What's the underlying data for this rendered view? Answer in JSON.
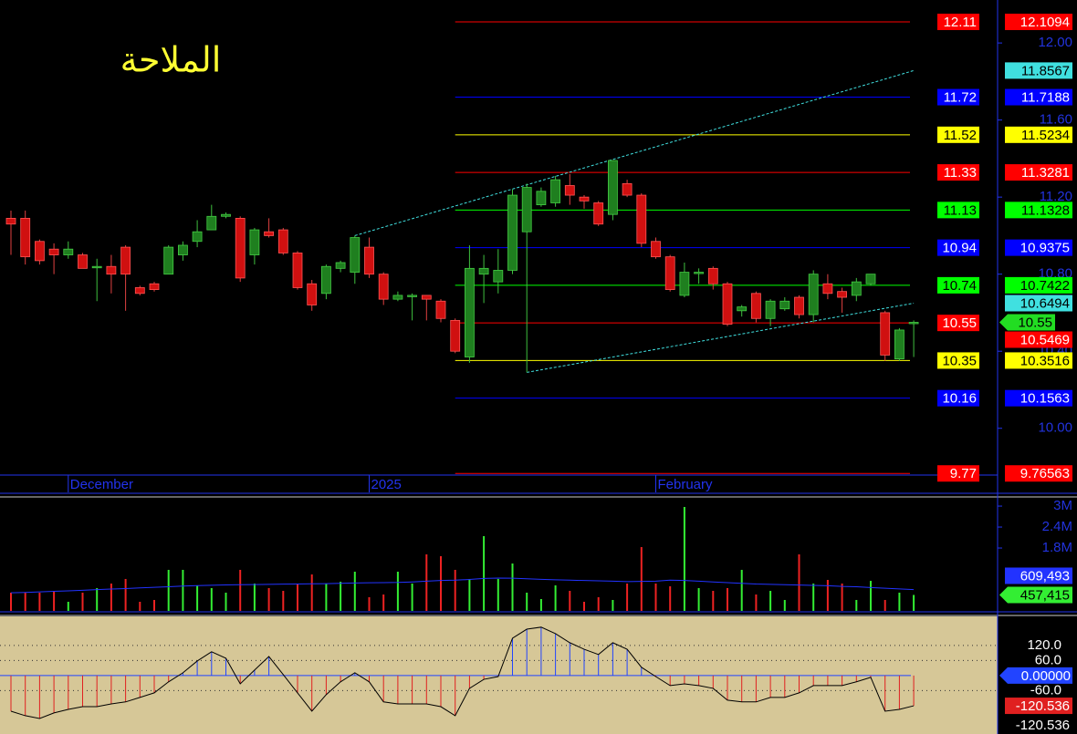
{
  "chart_data": [
    {
      "type": "candlestick",
      "title": "الملاحة",
      "categories": [
        null,
        null,
        null,
        null,
        "December",
        null,
        null,
        null,
        null,
        null,
        null,
        null,
        null,
        null,
        null,
        null,
        null,
        null,
        null,
        null,
        null,
        null,
        null,
        null,
        null,
        "2025",
        null,
        null,
        null,
        null,
        null,
        null,
        null,
        null,
        null,
        null,
        null,
        null,
        null,
        null,
        null,
        null,
        null,
        null,
        null,
        "February",
        null,
        null,
        null,
        null,
        null,
        null,
        null,
        null,
        null,
        null,
        null,
        null,
        null,
        null,
        null,
        null,
        null,
        null
      ],
      "open": [
        11.09,
        11.09,
        10.97,
        10.93,
        10.9,
        10.9,
        10.84,
        10.84,
        10.94,
        10.73,
        10.75,
        10.8,
        10.9,
        10.97,
        11.03,
        11.1,
        11.09,
        10.9,
        11.02,
        11.03,
        10.91,
        10.75,
        10.7,
        10.83,
        10.81,
        10.94,
        10.8,
        10.67,
        10.69,
        10.69,
        10.66,
        10.56,
        10.37,
        10.8,
        10.76,
        10.82,
        11.02,
        11.16,
        11.17,
        11.26,
        11.2,
        11.17,
        11.11,
        11.27,
        11.21,
        10.97,
        10.89,
        10.69,
        10.81,
        10.83,
        10.75,
        10.61,
        10.7,
        10.57,
        10.62,
        10.68,
        10.59,
        10.75,
        10.71,
        10.69,
        10.75,
        10.6,
        10.36,
        10.55
      ],
      "high": [
        11.13,
        11.13,
        10.98,
        10.96,
        10.97,
        10.91,
        10.88,
        10.9,
        10.95,
        10.74,
        10.76,
        10.95,
        10.97,
        11.08,
        11.16,
        11.12,
        11.1,
        11.04,
        11.09,
        11.04,
        10.92,
        10.77,
        10.85,
        10.87,
        11.0,
        10.99,
        10.81,
        10.71,
        10.7,
        10.69,
        10.67,
        10.57,
        10.95,
        10.9,
        10.93,
        11.24,
        11.27,
        11.25,
        11.31,
        11.32,
        11.21,
        11.18,
        11.39,
        11.29,
        11.22,
        10.99,
        10.9,
        10.86,
        10.83,
        10.84,
        10.76,
        10.64,
        10.71,
        10.67,
        10.68,
        10.69,
        10.82,
        10.8,
        10.73,
        10.78,
        10.8,
        10.61,
        10.52,
        10.56
      ],
      "low": [
        10.9,
        10.85,
        10.85,
        10.8,
        10.88,
        10.83,
        10.66,
        10.7,
        10.61,
        10.69,
        10.71,
        10.8,
        10.87,
        10.94,
        11.03,
        11.09,
        10.76,
        10.85,
        10.99,
        10.9,
        10.72,
        10.61,
        10.67,
        10.81,
        10.75,
        10.78,
        10.64,
        10.66,
        10.56,
        10.56,
        10.55,
        10.39,
        10.34,
        10.65,
        10.7,
        10.8,
        10.29,
        11.15,
        11.15,
        11.16,
        11.14,
        11.05,
        11.08,
        11.2,
        10.94,
        10.88,
        10.71,
        10.68,
        10.75,
        10.72,
        10.53,
        10.58,
        10.55,
        10.53,
        10.61,
        10.57,
        10.55,
        10.67,
        10.6,
        10.66,
        10.74,
        10.35,
        10.35,
        10.37
      ],
      "close": [
        11.06,
        10.89,
        10.87,
        10.9,
        10.93,
        10.83,
        10.84,
        10.8,
        10.8,
        10.7,
        10.72,
        10.94,
        10.95,
        11.02,
        11.1,
        11.11,
        10.78,
        11.03,
        11.0,
        10.91,
        10.73,
        10.64,
        10.84,
        10.86,
        10.99,
        10.8,
        10.67,
        10.69,
        10.69,
        10.67,
        10.57,
        10.4,
        10.83,
        10.83,
        10.82,
        11.21,
        11.25,
        11.23,
        11.29,
        11.21,
        11.18,
        11.06,
        11.39,
        11.21,
        10.96,
        10.89,
        10.72,
        10.81,
        10.81,
        10.75,
        10.54,
        10.63,
        10.57,
        10.66,
        10.66,
        10.59,
        10.8,
        10.7,
        10.68,
        10.76,
        10.8,
        10.38,
        10.51,
        10.55
      ],
      "up_color": "#1f7f1f",
      "down_color": "#d01010",
      "ylim": [
        9.762,
        12.223
      ],
      "yticks": [
        {
          "value": 12,
          "label": "12.00"
        },
        {
          "value": 11.6,
          "label": "11.60"
        },
        {
          "value": 11.2,
          "label": "11.20"
        },
        {
          "value": 10.8,
          "label": "10.80"
        },
        {
          "value": 10.4,
          "label": "10.40"
        },
        {
          "value": 10,
          "label": "10.00"
        }
      ],
      "levels_from": 31,
      "levels": [
        {
          "value": 12.1094,
          "label": "12.11",
          "color": "#ff0000"
        },
        {
          "value": 11.7188,
          "label": "11.72",
          "color": "#0000ff"
        },
        {
          "value": 11.5234,
          "label": "11.52",
          "color": "#ffff00"
        },
        {
          "value": 11.3281,
          "label": "11.33",
          "color": "#ff0000"
        },
        {
          "value": 11.1328,
          "label": "11.13",
          "color": "#00ff00"
        },
        {
          "value": 10.9375,
          "label": "10.94",
          "color": "#0000ff"
        },
        {
          "value": 10.7422,
          "label": "10.74",
          "color": "#00ff00"
        },
        {
          "value": 10.5469,
          "label": "10.55",
          "color": "#ff0000"
        },
        {
          "value": 10.3516,
          "label": "10.35",
          "color": "#ffff00"
        },
        {
          "value": 10.1563,
          "label": "10.16",
          "color": "#0000ff"
        },
        {
          "value": 9.76563,
          "label": "9.77",
          "color": "#ff0000"
        }
      ],
      "trendlines": [
        {
          "from": [
            24,
            11.0
          ],
          "to": [
            63,
            11.8567
          ],
          "color": "#40e0e0"
        },
        {
          "from": [
            36,
            10.29
          ],
          "to": [
            63,
            10.6494
          ],
          "color": "#40e0e0"
        }
      ],
      "last_color": "#22dd22"
    },
    {
      "type": "volume",
      "values": [
        522000,
        522000,
        522000,
        574000,
        261000,
        522000,
        653000,
        783000,
        914000,
        261000,
        313000,
        1175000,
        1175000,
        731000,
        653000,
        522000,
        1175000,
        783000,
        653000,
        574000,
        783000,
        1044000,
        783000,
        835000,
        1122000,
        392000,
        470000,
        1122000,
        783000,
        1618000,
        1566000,
        1175000,
        914000,
        2140000,
        914000,
        1357000,
        522000,
        339000,
        731000,
        574000,
        261000,
        392000,
        313000,
        783000,
        1827000,
        783000,
        705000,
        2975000,
        653000,
        574000,
        653000,
        1175000,
        470000,
        574000,
        313000,
        1618000,
        783000,
        887000,
        783000,
        313000,
        861000,
        313000,
        522000,
        457415
      ],
      "value_label_last": "457,415",
      "ma_values": [
        520000,
        530000,
        545000,
        560000,
        575000,
        590000,
        610000,
        625000,
        640000,
        660000,
        675000,
        690000,
        710000,
        725000,
        735000,
        745000,
        750000,
        755000,
        760000,
        765000,
        770000,
        775000,
        780000,
        790000,
        800000,
        805000,
        810000,
        815000,
        830000,
        850000,
        870000,
        880000,
        900000,
        930000,
        940000,
        935000,
        920000,
        905000,
        890000,
        880000,
        870000,
        860000,
        850000,
        840000,
        845000,
        850000,
        880000,
        870000,
        850000,
        830000,
        810000,
        790000,
        770000,
        760000,
        750000,
        740000,
        730000,
        720000,
        700000,
        690000,
        670000,
        650000,
        630000,
        609493
      ],
      "ma_label_last": "609,493",
      "up_color": "#33ee33",
      "down_color": "#ee2222",
      "ma_color": "#2233ff",
      "ylim": [
        0,
        3210000
      ],
      "yticks": [
        {
          "value": 3000000,
          "label": "3M"
        },
        {
          "value": 2400000,
          "label": "2.4M"
        },
        {
          "value": 1800000,
          "label": "1.8M"
        }
      ]
    },
    {
      "type": "oscillator",
      "values": [
        -142,
        -160,
        -171,
        -149,
        -135,
        -124,
        -124,
        -113,
        -105,
        -87,
        -69,
        -25,
        11,
        58,
        95,
        69,
        -33,
        22,
        76,
        4,
        -69,
        -142,
        -76,
        -25,
        11,
        -25,
        -105,
        -113,
        -113,
        -113,
        -124,
        -160,
        -51,
        -15,
        -4,
        149,
        185,
        193,
        167,
        131,
        105,
        84,
        131,
        105,
        33,
        -4,
        -40,
        -33,
        -40,
        -51,
        -98,
        -105,
        -105,
        -87,
        -87,
        -69,
        -40,
        -40,
        -40,
        -25,
        -7,
        -142,
        -135,
        -120.536
      ],
      "pos_color": "#2244ff",
      "neg_color": "#e02020",
      "line_color": "#000000",
      "ylim": [
        -233,
        236
      ],
      "yticks": [
        {
          "value": 120,
          "label": "120.0"
        },
        {
          "value": 60,
          "label": "60.0"
        },
        {
          "value": 0,
          "label": "0.00000"
        },
        {
          "value": -60,
          "label": "-60.0"
        }
      ],
      "range_min": -120.536
    }
  ]
}
